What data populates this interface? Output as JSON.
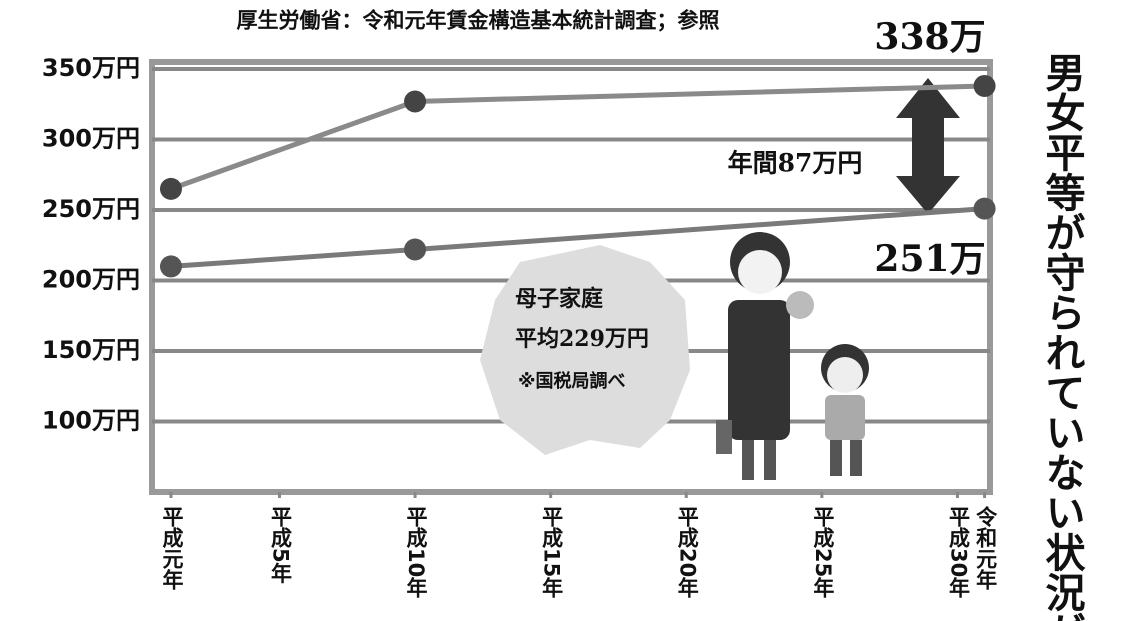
{
  "chart_data": {
    "type": "line",
    "title": "厚生労働省：令和元年賃金構造基本統計調査；参照",
    "x": [
      1989,
      1998,
      2019
    ],
    "series": [
      {
        "color": "#8a8a8a",
        "marker_color": "#444444",
        "values": [
          265,
          327,
          338
        ]
      },
      {
        "color": "#7a7a7a",
        "marker_color": "#555555",
        "values": [
          210,
          222,
          251
        ]
      }
    ],
    "xlim": [
      1988.3,
      2019.2
    ],
    "xticks": [
      {
        "value": 1989,
        "label": "平成元年"
      },
      {
        "value": 1993,
        "label": "平成5年"
      },
      {
        "value": 1998,
        "label": "平成10年"
      },
      {
        "value": 2003,
        "label": "平成15年"
      },
      {
        "value": 2008,
        "label": "平成20年"
      },
      {
        "value": 2013,
        "label": "平成25年"
      },
      {
        "value": 2018,
        "label": "平成30年"
      },
      {
        "value": 2019,
        "label": "令和元年"
      }
    ],
    "ylim": [
      50,
      355
    ],
    "yticks": [
      {
        "value": 100,
        "label": "100万円"
      },
      {
        "value": 150,
        "label": "150万円"
      },
      {
        "value": 200,
        "label": "200万円"
      },
      {
        "value": 250,
        "label": "250万円"
      },
      {
        "value": 300,
        "label": "300万円"
      },
      {
        "value": 350,
        "label": "350万円"
      }
    ],
    "grid": true,
    "annotations": {
      "top_value": "338万",
      "bottom_value": "251万",
      "gap": "年間87万円",
      "bubble": [
        "母子家庭",
        "平均229万円",
        "※国税局調べ"
      ],
      "side_text": "男女平等が守られていない状況が"
    }
  }
}
